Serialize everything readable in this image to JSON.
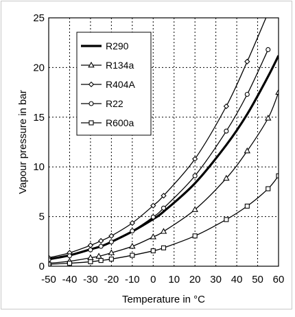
{
  "chart_data": {
    "type": "line",
    "xlabel": "Temperature in °C",
    "ylabel": "Vapour pressure in bar",
    "xlim": [
      -50,
      60
    ],
    "ylim": [
      0,
      25
    ],
    "xticks": [
      -50,
      -40,
      -30,
      -20,
      -10,
      0,
      10,
      20,
      30,
      40,
      50,
      60
    ],
    "yticks": [
      0,
      5,
      10,
      15,
      20,
      25
    ],
    "grid": true,
    "legend_position": "top-left",
    "series": [
      {
        "name": "R290",
        "marker": "none",
        "line": "bold",
        "x": [
          -50,
          -40,
          -30,
          -25,
          -20,
          -10,
          0,
          5,
          20,
          35,
          45,
          55,
          60
        ],
        "y": [
          0.7,
          1.1,
          1.7,
          2.0,
          2.45,
          3.5,
          4.75,
          5.5,
          8.35,
          12.2,
          15.3,
          19.1,
          21.2
        ]
      },
      {
        "name": "R134a",
        "marker": "triangle",
        "line": "thin",
        "x": [
          -50,
          -40,
          -30,
          -26,
          -20,
          -10,
          0,
          5,
          20,
          35,
          45,
          55,
          60
        ],
        "y": [
          0.3,
          0.5,
          0.85,
          1.0,
          1.35,
          2.0,
          2.95,
          3.5,
          5.7,
          8.85,
          11.6,
          14.9,
          17.5
        ]
      },
      {
        "name": "R404A",
        "marker": "diamond",
        "line": "thin",
        "x": [
          -50,
          -40,
          -30,
          -25,
          -20,
          -10,
          0,
          5,
          20,
          35,
          45,
          55
        ],
        "y": [
          0.85,
          1.35,
          2.1,
          2.55,
          3.05,
          4.35,
          6.1,
          7.1,
          10.8,
          16.1,
          20.6,
          25.5
        ]
      },
      {
        "name": "R22",
        "marker": "circle",
        "line": "thin",
        "x": [
          -50,
          -40,
          -30,
          -25,
          -20,
          -10,
          0,
          5,
          20,
          35,
          45,
          55
        ],
        "y": [
          0.65,
          1.05,
          1.65,
          2.0,
          2.45,
          3.55,
          4.95,
          5.85,
          9.1,
          13.6,
          17.3,
          21.8
        ]
      },
      {
        "name": "R600a",
        "marker": "square",
        "line": "thin",
        "x": [
          -50,
          -40,
          -30,
          -25,
          -20,
          -10,
          0,
          5,
          20,
          35,
          45,
          55,
          60
        ],
        "y": [
          0.2,
          0.3,
          0.45,
          0.58,
          0.72,
          1.1,
          1.55,
          1.85,
          3.05,
          4.7,
          6.05,
          7.8,
          9.1
        ]
      }
    ]
  }
}
